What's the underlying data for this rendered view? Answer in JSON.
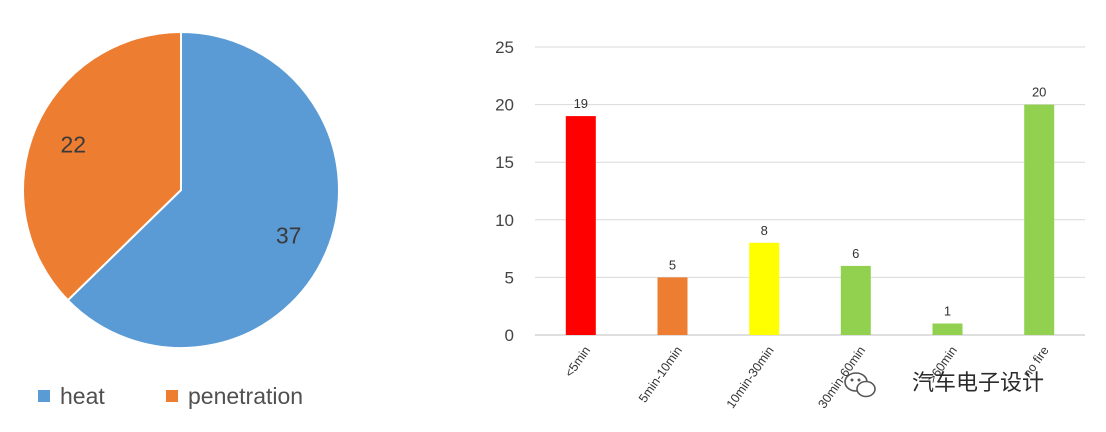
{
  "chart_data": [
    {
      "type": "pie",
      "slices": [
        {
          "name": "heat",
          "value": 37,
          "color": "#5b9bd5"
        },
        {
          "name": "penetration",
          "value": 22,
          "color": "#ed7d31"
        }
      ],
      "legend_position": "bottom-left"
    },
    {
      "type": "bar",
      "categories": [
        "<5min",
        "5min-10min",
        "10min-30min",
        "30min-60min",
        ">60min",
        "no fire"
      ],
      "values": [
        19,
        5,
        8,
        6,
        1,
        20
      ],
      "colors": [
        "#ff0000",
        "#ed7d31",
        "#ffff00",
        "#92d050",
        "#92d050",
        "#92d050"
      ],
      "yticks": [
        0,
        5,
        10,
        15,
        20,
        25
      ],
      "ylim": [
        0,
        25
      ],
      "grid": true,
      "xlabel": "",
      "ylabel": ""
    }
  ],
  "watermark": {
    "text": "汽车电子设计",
    "icon": "wechat-icon"
  }
}
